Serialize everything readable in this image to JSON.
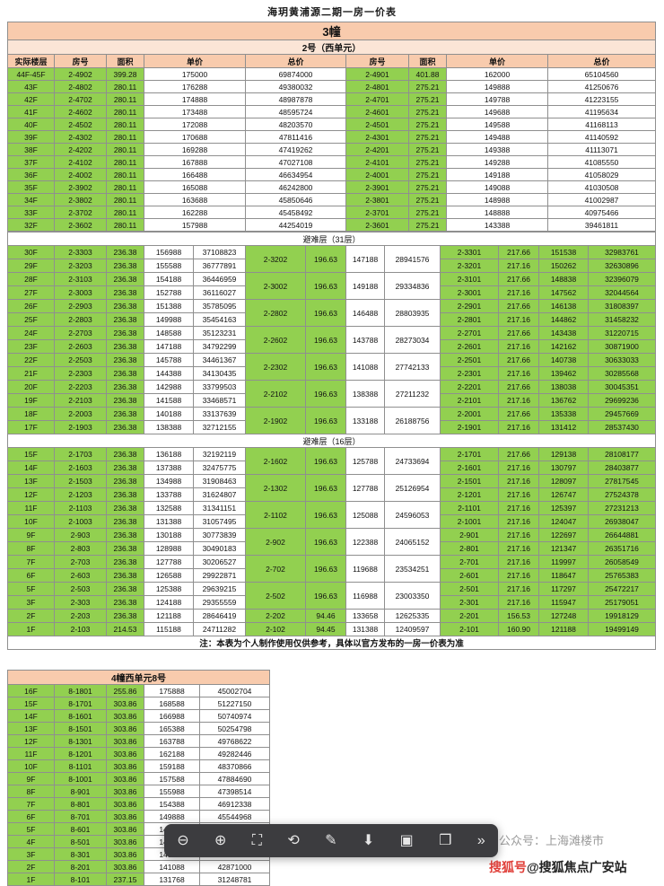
{
  "page_title": "海玥黄浦源二期一房一价表",
  "b3": {
    "header": "3幢",
    "unit_header": "2号（西单元）",
    "columns": [
      "实际楼层",
      "房号",
      "面积",
      "单价",
      "总价",
      "房号",
      "面积",
      "单价",
      "总价"
    ],
    "refuge31": "避难层（31层）",
    "refuge16": "避难层（16层）",
    "note": "注：本表为个人制作使用仅供参考，具体以官方发布的一房一价表为准",
    "top": {
      "green_cols": [
        0,
        1,
        2,
        5,
        6
      ],
      "rows": [
        [
          "44F-45F",
          "2-4902",
          "399.28",
          "175000",
          "69874000",
          "2-4901",
          "401.88",
          "162000",
          "65104560"
        ],
        [
          "43F",
          "2-4802",
          "280.11",
          "176288",
          "49380032",
          "2-4801",
          "275.21",
          "149888",
          "41250676"
        ],
        [
          "42F",
          "2-4702",
          "280.11",
          "174888",
          "48987878",
          "2-4701",
          "275.21",
          "149788",
          "41223155"
        ],
        [
          "41F",
          "2-4602",
          "280.11",
          "173488",
          "48595724",
          "2-4601",
          "275.21",
          "149688",
          "41195634"
        ],
        [
          "40F",
          "2-4502",
          "280.11",
          "172088",
          "48203570",
          "2-4501",
          "275.21",
          "149588",
          "41168113"
        ],
        [
          "39F",
          "2-4302",
          "280.11",
          "170688",
          "47811416",
          "2-4301",
          "275.21",
          "149488",
          "41140592"
        ],
        [
          "38F",
          "2-4202",
          "280.11",
          "169288",
          "47419262",
          "2-4201",
          "275.21",
          "149388",
          "41113071"
        ],
        [
          "37F",
          "2-4102",
          "280.11",
          "167888",
          "47027108",
          "2-4101",
          "275.21",
          "149288",
          "41085550"
        ],
        [
          "36F",
          "2-4002",
          "280.11",
          "166488",
          "46634954",
          "2-4001",
          "275.21",
          "149188",
          "41058029"
        ],
        [
          "35F",
          "2-3902",
          "280.11",
          "165088",
          "46242800",
          "2-3901",
          "275.21",
          "149088",
          "41030508"
        ],
        [
          "34F",
          "2-3802",
          "280.11",
          "163688",
          "45850646",
          "2-3801",
          "275.21",
          "148988",
          "41002987"
        ],
        [
          "33F",
          "2-3702",
          "280.11",
          "162288",
          "45458492",
          "2-3701",
          "275.21",
          "148888",
          "40975466"
        ],
        [
          "32F",
          "2-3602",
          "280.11",
          "157988",
          "44254019",
          "2-3601",
          "275.21",
          "143388",
          "39461811"
        ]
      ]
    },
    "mid": {
      "green_cols": [
        0,
        1,
        2,
        5,
        6,
        9,
        10,
        11,
        12
      ],
      "rows": [
        [
          "30F",
          "2-3303",
          "236.38",
          "156988",
          "37108823",
          {
            "v": "2-3202",
            "rs": 2
          },
          {
            "v": "196.63",
            "rs": 2
          },
          {
            "v": "147188",
            "rs": 2
          },
          {
            "v": "28941576",
            "rs": 2
          },
          "2-3301",
          "217.66",
          "151538",
          "32983761"
        ],
        [
          "29F",
          "2-3203",
          "236.38",
          "155588",
          "36777891",
          null,
          null,
          null,
          null,
          "2-3201",
          "217.16",
          "150262",
          "32630896"
        ],
        [
          "28F",
          "2-3103",
          "236.38",
          "154188",
          "36446959",
          {
            "v": "2-3002",
            "rs": 2
          },
          {
            "v": "196.63",
            "rs": 2
          },
          {
            "v": "149188",
            "rs": 2
          },
          {
            "v": "29334836",
            "rs": 2
          },
          "2-3101",
          "217.66",
          "148838",
          "32396079"
        ],
        [
          "27F",
          "2-3003",
          "236.38",
          "152788",
          "36116027",
          null,
          null,
          null,
          null,
          "2-3001",
          "217.16",
          "147562",
          "32044564"
        ],
        [
          "26F",
          "2-2903",
          "236.38",
          "151388",
          "35785095",
          {
            "v": "2-2802",
            "rs": 2
          },
          {
            "v": "196.63",
            "rs": 2
          },
          {
            "v": "146488",
            "rs": 2
          },
          {
            "v": "28803935",
            "rs": 2
          },
          "2-2901",
          "217.66",
          "146138",
          "31808397"
        ],
        [
          "25F",
          "2-2803",
          "236.38",
          "149988",
          "35454163",
          null,
          null,
          null,
          null,
          "2-2801",
          "217.16",
          "144862",
          "31458232"
        ],
        [
          "24F",
          "2-2703",
          "236.38",
          "148588",
          "35123231",
          {
            "v": "2-2602",
            "rs": 2
          },
          {
            "v": "196.63",
            "rs": 2
          },
          {
            "v": "143788",
            "rs": 2
          },
          {
            "v": "28273034",
            "rs": 2
          },
          "2-2701",
          "217.66",
          "143438",
          "31220715"
        ],
        [
          "23F",
          "2-2603",
          "236.38",
          "147188",
          "34792299",
          null,
          null,
          null,
          null,
          "2-2601",
          "217.16",
          "142162",
          "30871900"
        ],
        [
          "22F",
          "2-2503",
          "236.38",
          "145788",
          "34461367",
          {
            "v": "2-2302",
            "rs": 2
          },
          {
            "v": "196.63",
            "rs": 2
          },
          {
            "v": "141088",
            "rs": 2
          },
          {
            "v": "27742133",
            "rs": 2
          },
          "2-2501",
          "217.66",
          "140738",
          "30633033"
        ],
        [
          "21F",
          "2-2303",
          "236.38",
          "144388",
          "34130435",
          null,
          null,
          null,
          null,
          "2-2301",
          "217.16",
          "139462",
          "30285568"
        ],
        [
          "20F",
          "2-2203",
          "236.38",
          "142988",
          "33799503",
          {
            "v": "2-2102",
            "rs": 2
          },
          {
            "v": "196.63",
            "rs": 2
          },
          {
            "v": "138388",
            "rs": 2
          },
          {
            "v": "27211232",
            "rs": 2
          },
          "2-2201",
          "217.66",
          "138038",
          "30045351"
        ],
        [
          "19F",
          "2-2103",
          "236.38",
          "141588",
          "33468571",
          null,
          null,
          null,
          null,
          "2-2101",
          "217.16",
          "136762",
          "29699236"
        ],
        [
          "18F",
          "2-2003",
          "236.38",
          "140188",
          "33137639",
          {
            "v": "2-1902",
            "rs": 2
          },
          {
            "v": "196.63",
            "rs": 2
          },
          {
            "v": "133188",
            "rs": 2
          },
          {
            "v": "26188756",
            "rs": 2
          },
          "2-2001",
          "217.66",
          "135338",
          "29457669"
        ],
        [
          "17F",
          "2-1903",
          "236.38",
          "138388",
          "32712155",
          null,
          null,
          null,
          null,
          "2-1901",
          "217.16",
          "131412",
          "28537430"
        ]
      ]
    },
    "low": {
      "green_cols": [
        0,
        1,
        2,
        5,
        6,
        9,
        10,
        11,
        12
      ],
      "rows": [
        [
          "15F",
          "2-1703",
          "236.38",
          "136188",
          "32192119",
          {
            "v": "2-1602",
            "rs": 2
          },
          {
            "v": "196.63",
            "rs": 2
          },
          {
            "v": "125788",
            "rs": 2
          },
          {
            "v": "24733694",
            "rs": 2
          },
          "2-1701",
          "217.66",
          "129138",
          "28108177"
        ],
        [
          "14F",
          "2-1603",
          "236.38",
          "137388",
          "32475775",
          null,
          null,
          null,
          null,
          "2-1601",
          "217.16",
          "130797",
          "28403877"
        ],
        [
          "13F",
          "2-1503",
          "236.38",
          "134988",
          "31908463",
          {
            "v": "2-1302",
            "rs": 2
          },
          {
            "v": "196.63",
            "rs": 2
          },
          {
            "v": "127788",
            "rs": 2
          },
          {
            "v": "25126954",
            "rs": 2
          },
          "2-1501",
          "217.16",
          "128097",
          "27817545"
        ],
        [
          "12F",
          "2-1203",
          "236.38",
          "133788",
          "31624807",
          null,
          null,
          null,
          null,
          "2-1201",
          "217.16",
          "126747",
          "27524378"
        ],
        [
          "11F",
          "2-1103",
          "236.38",
          "132588",
          "31341151",
          {
            "v": "2-1102",
            "rs": 2
          },
          {
            "v": "196.63",
            "rs": 2
          },
          {
            "v": "125088",
            "rs": 2
          },
          {
            "v": "24596053",
            "rs": 2
          },
          "2-1101",
          "217.16",
          "125397",
          "27231213"
        ],
        [
          "10F",
          "2-1003",
          "236.38",
          "131388",
          "31057495",
          null,
          null,
          null,
          null,
          "2-1001",
          "217.16",
          "124047",
          "26938047"
        ],
        [
          "9F",
          "2-903",
          "236.38",
          "130188",
          "30773839",
          {
            "v": "2-902",
            "rs": 2
          },
          {
            "v": "196.63",
            "rs": 2
          },
          {
            "v": "122388",
            "rs": 2
          },
          {
            "v": "24065152",
            "rs": 2
          },
          "2-901",
          "217.16",
          "122697",
          "26644881"
        ],
        [
          "8F",
          "2-803",
          "236.38",
          "128988",
          "30490183",
          null,
          null,
          null,
          null,
          "2-801",
          "217.16",
          "121347",
          "26351716"
        ],
        [
          "7F",
          "2-703",
          "236.38",
          "127788",
          "30206527",
          {
            "v": "2-702",
            "rs": 2
          },
          {
            "v": "196.63",
            "rs": 2
          },
          {
            "v": "119688",
            "rs": 2
          },
          {
            "v": "23534251",
            "rs": 2
          },
          "2-701",
          "217.16",
          "119997",
          "26058549"
        ],
        [
          "6F",
          "2-603",
          "236.38",
          "126588",
          "29922871",
          null,
          null,
          null,
          null,
          "2-601",
          "217.16",
          "118647",
          "25765383"
        ],
        [
          "5F",
          "2-503",
          "236.38",
          "125388",
          "29639215",
          {
            "v": "2-502",
            "rs": 2
          },
          {
            "v": "196.63",
            "rs": 2
          },
          {
            "v": "116988",
            "rs": 2
          },
          {
            "v": "23003350",
            "rs": 2
          },
          "2-501",
          "217.16",
          "117297",
          "25472217"
        ],
        [
          "3F",
          "2-303",
          "236.38",
          "124188",
          "29355559",
          null,
          null,
          null,
          null,
          "2-301",
          "217.16",
          "115947",
          "25179051"
        ],
        [
          "2F",
          "2-203",
          "236.38",
          "121188",
          "28646419",
          "2-202",
          "94.46",
          "133658",
          "12625335",
          "2-201",
          "156.53",
          "127248",
          "19918129"
        ],
        [
          "1F",
          "2-103",
          "214.53",
          "115188",
          "24711282",
          "2-102",
          "94.45",
          "131388",
          "12409597",
          "2-101",
          "160.90",
          "121188",
          "19499149"
        ]
      ]
    }
  },
  "b4": {
    "header": "4幢西单元8号",
    "green_cols": [
      0,
      1,
      2
    ],
    "rows": [
      [
        "16F",
        "8-1801",
        "255.86",
        "175888",
        "45002704"
      ],
      [
        "15F",
        "8-1701",
        "303.86",
        "168588",
        "51227150"
      ],
      [
        "14F",
        "8-1601",
        "303.86",
        "166988",
        "50740974"
      ],
      [
        "13F",
        "8-1501",
        "303.86",
        "165388",
        "50254798"
      ],
      [
        "12F",
        "8-1301",
        "303.86",
        "163788",
        "49768622"
      ],
      [
        "11F",
        "8-1201",
        "303.86",
        "162188",
        "49282446"
      ],
      [
        "10F",
        "8-1101",
        "303.86",
        "159188",
        "48370866"
      ],
      [
        "9F",
        "8-1001",
        "303.86",
        "157588",
        "47884690"
      ],
      [
        "8F",
        "8-901",
        "303.86",
        "155988",
        "47398514"
      ],
      [
        "7F",
        "8-801",
        "303.86",
        "154388",
        "46912338"
      ],
      [
        "6F",
        "8-701",
        "303.86",
        "149888",
        "45544968"
      ],
      [
        "5F",
        "8-601",
        "303.86",
        "148288",
        "45058792"
      ],
      [
        "4F",
        "8-501",
        "303.86",
        "146688",
        "44572616"
      ],
      [
        "3F",
        "8-301",
        "303.86",
        "145088",
        "44086440"
      ],
      [
        "2F",
        "8-201",
        "303.86",
        "141088",
        "42871000"
      ],
      [
        "1F",
        "8-101",
        "237.15",
        "131768",
        "31248781"
      ]
    ]
  },
  "toolbar": {
    "icons": [
      {
        "name": "zoom-out-icon",
        "glyph": "⊖"
      },
      {
        "name": "zoom-in-icon",
        "glyph": "⊕"
      },
      {
        "name": "fit-screen-icon",
        "glyph": "⛶"
      },
      {
        "name": "rotate-icon",
        "glyph": "⟲"
      },
      {
        "name": "edit-icon",
        "glyph": "✎"
      },
      {
        "name": "save-icon",
        "glyph": "⬇"
      },
      {
        "name": "crop-icon",
        "glyph": "▣"
      },
      {
        "name": "share-icon",
        "glyph": "❐"
      },
      {
        "name": "more-icon",
        "glyph": "»"
      }
    ]
  },
  "watermarks": {
    "wechat": "公众号：上海滩楼市",
    "sohu_prefix": "搜狐号",
    "sohu_rest": "@搜狐焦点广安站"
  }
}
